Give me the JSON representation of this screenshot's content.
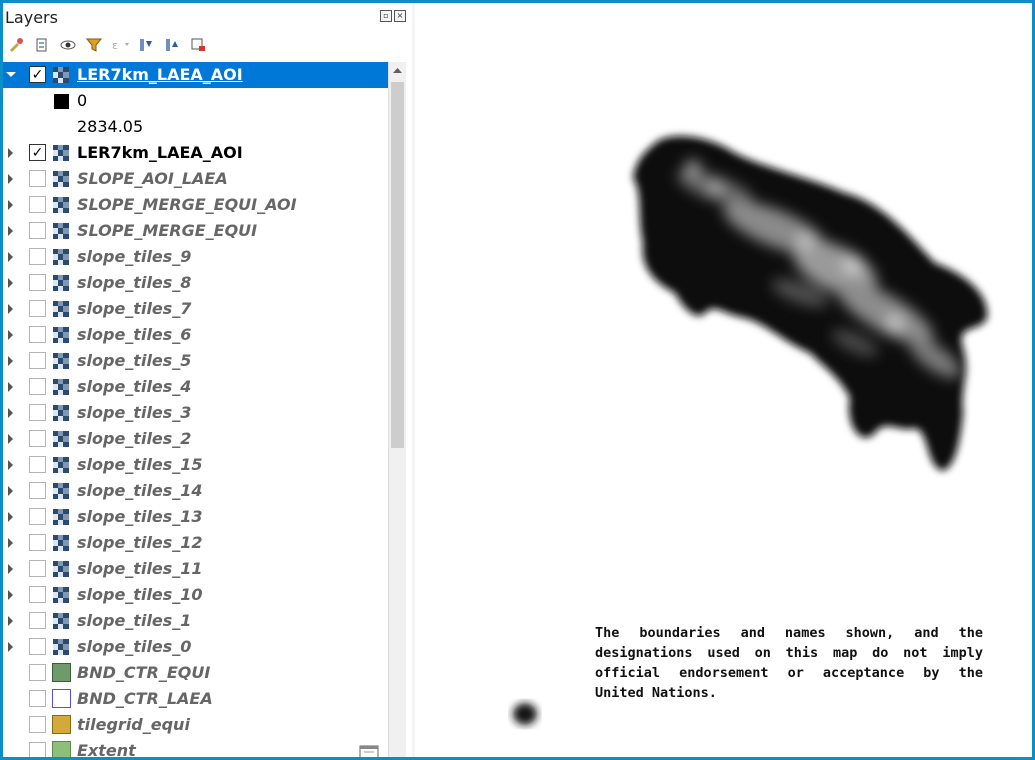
{
  "panel": {
    "title": "Layers",
    "controls": [
      "float-icon",
      "close-icon"
    ],
    "toolbar_icons": [
      "style-manager-icon",
      "add-group-icon",
      "manage-visibility-icon",
      "filter-icon",
      "expression-filter-icon",
      "expand-all-icon",
      "collapse-all-icon",
      "remove-layer-icon"
    ]
  },
  "layers": [
    {
      "name": "LER7km_LAEA_AOI",
      "checked": true,
      "expanded": true,
      "selected": true,
      "kind": "raster"
    },
    {
      "name": "LER7km_LAEA_AOI",
      "checked": true,
      "expanded": false,
      "kind": "raster"
    },
    {
      "name": "SLOPE_AOI_LAEA",
      "checked": false,
      "kind": "raster"
    },
    {
      "name": "SLOPE_MERGE_EQUI_AOI",
      "checked": false,
      "kind": "raster"
    },
    {
      "name": "SLOPE_MERGE_EQUI",
      "checked": false,
      "kind": "raster"
    },
    {
      "name": "slope_tiles_9",
      "checked": false,
      "kind": "raster"
    },
    {
      "name": "slope_tiles_8",
      "checked": false,
      "kind": "raster"
    },
    {
      "name": "slope_tiles_7",
      "checked": false,
      "kind": "raster"
    },
    {
      "name": "slope_tiles_6",
      "checked": false,
      "kind": "raster"
    },
    {
      "name": "slope_tiles_5",
      "checked": false,
      "kind": "raster"
    },
    {
      "name": "slope_tiles_4",
      "checked": false,
      "kind": "raster"
    },
    {
      "name": "slope_tiles_3",
      "checked": false,
      "kind": "raster"
    },
    {
      "name": "slope_tiles_2",
      "checked": false,
      "kind": "raster"
    },
    {
      "name": "slope_tiles_15",
      "checked": false,
      "kind": "raster"
    },
    {
      "name": "slope_tiles_14",
      "checked": false,
      "kind": "raster"
    },
    {
      "name": "slope_tiles_13",
      "checked": false,
      "kind": "raster"
    },
    {
      "name": "slope_tiles_12",
      "checked": false,
      "kind": "raster"
    },
    {
      "name": "slope_tiles_11",
      "checked": false,
      "kind": "raster"
    },
    {
      "name": "slope_tiles_10",
      "checked": false,
      "kind": "raster"
    },
    {
      "name": "slope_tiles_1",
      "checked": false,
      "kind": "raster"
    },
    {
      "name": "slope_tiles_0",
      "checked": false,
      "kind": "raster"
    },
    {
      "name": "BND_CTR_EQUI",
      "checked": false,
      "kind": "vector",
      "fill": "#6d9b6a",
      "stroke": "#3d5e3b"
    },
    {
      "name": "BND_CTR_LAEA",
      "checked": false,
      "kind": "vector",
      "fill": "#ffffff",
      "stroke": "#5b4fd1"
    },
    {
      "name": "tilegrid_equi",
      "checked": false,
      "kind": "vector",
      "fill": "#d4a93a",
      "stroke": "#8a6a18"
    },
    {
      "name": "Extent",
      "checked": false,
      "kind": "vector",
      "fill": "#8cbf7a",
      "stroke": "#5a8a4c"
    }
  ],
  "legend": {
    "min_label": "0",
    "max_label": "2834.05"
  },
  "map": {
    "disclaimer": "The boundaries and names shown, and the designations used on this map do not imply official endorsement or acceptance by the United Nations."
  },
  "colors": {
    "selection": "#0078d7",
    "window_border": "#0b8dc8"
  }
}
